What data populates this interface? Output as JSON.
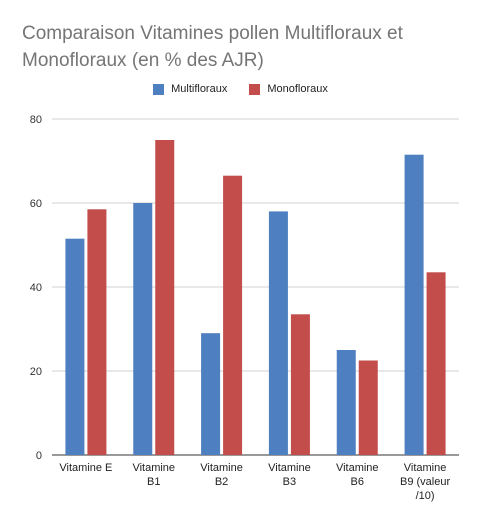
{
  "chart_data": {
    "type": "bar",
    "title": "Comparaison Vitamines pollen Multifloraux et Monofloraux (en % des AJR)",
    "xlabel": "",
    "ylabel": "",
    "ylim": [
      0,
      80
    ],
    "yticks": [
      0,
      20,
      40,
      60,
      80
    ],
    "grid": true,
    "legend_position": "top",
    "categories": [
      [
        "Vitamine E"
      ],
      [
        "Vitamine",
        "B1"
      ],
      [
        "Vitamine",
        "B2"
      ],
      [
        "Vitamine",
        "B3"
      ],
      [
        "Vitamine",
        "B6"
      ],
      [
        "Vitamine",
        "B9 (valeur",
        "/10)"
      ]
    ],
    "series": [
      {
        "name": "Multifloraux",
        "color": "#4e7fc0",
        "values": [
          51.5,
          60,
          29,
          58,
          25,
          71.5
        ]
      },
      {
        "name": "Monofloraux",
        "color": "#c24d4a",
        "values": [
          58.5,
          75,
          66.5,
          33.5,
          22.5,
          43.5
        ]
      }
    ]
  }
}
